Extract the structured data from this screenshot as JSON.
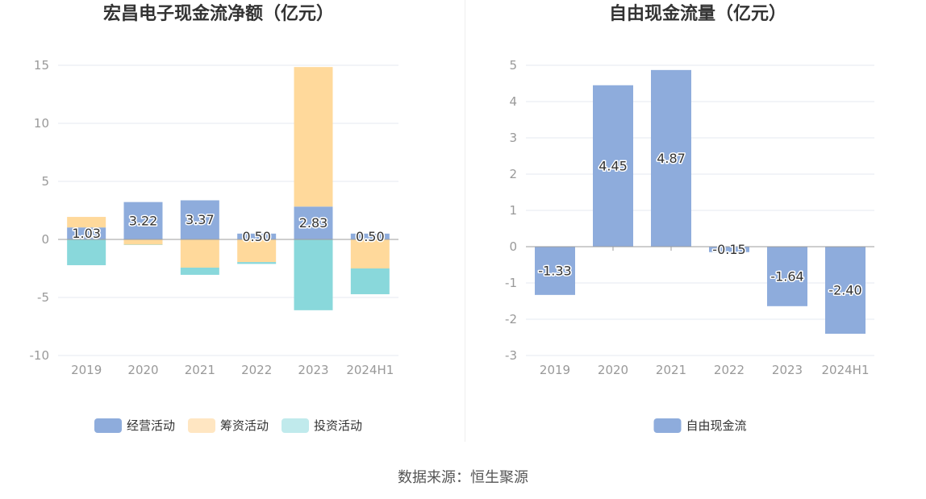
{
  "chart_data": [
    {
      "type": "bar",
      "stacked": true,
      "title": "宏昌电子现金流净额（亿元）",
      "categories": [
        "2019",
        "2020",
        "2021",
        "2022",
        "2023",
        "2024H1"
      ],
      "ylim": [
        -10,
        15
      ],
      "yticks": [
        -10,
        -5,
        0,
        5,
        10,
        15
      ],
      "grid": true,
      "legend": "bottom",
      "series": [
        {
          "name": "经营活动",
          "values": [
            1.03,
            3.22,
            3.37,
            0.5,
            2.83,
            0.5
          ],
          "color": "#8eacdc",
          "legend_color": "#8eacdc",
          "data_labels": true
        },
        {
          "name": "筹资活动",
          "values": [
            0.91,
            -0.45,
            -2.43,
            -1.95,
            12.02,
            -2.5
          ],
          "color": "#ffd99b",
          "legend_color": "#ffe6c2",
          "data_labels": false
        },
        {
          "name": "投资活动",
          "values": [
            -2.22,
            -0.03,
            -0.62,
            -0.16,
            -6.1,
            -2.22
          ],
          "color": "#89d8db",
          "legend_color": "#c0eaec",
          "data_labels": false
        }
      ]
    },
    {
      "type": "bar",
      "stacked": false,
      "title": "自由现金流量（亿元）",
      "categories": [
        "2019",
        "2020",
        "2021",
        "2022",
        "2023",
        "2024H1"
      ],
      "ylim": [
        -3,
        5
      ],
      "yticks": [
        -3,
        -2,
        -1,
        0,
        1,
        2,
        3,
        4,
        5
      ],
      "grid": true,
      "legend": "bottom",
      "series": [
        {
          "name": "自由现金流",
          "values": [
            -1.33,
            4.45,
            4.87,
            -0.15,
            -1.64,
            -2.4
          ],
          "color": "#8eacdc",
          "legend_color": "#8eacdc",
          "data_labels": true
        }
      ]
    }
  ],
  "footer": {
    "source": "数据来源：恒生聚源"
  }
}
